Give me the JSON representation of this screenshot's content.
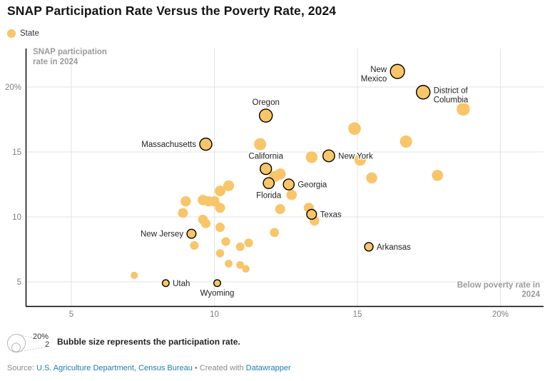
{
  "header": {
    "title": "SNAP Participation Rate Versus the Poverty Rate, 2024"
  },
  "legend": {
    "label": "State"
  },
  "chart_data": {
    "type": "scatter",
    "title": "SNAP Participation Rate Versus the Poverty Rate, 2024",
    "series_name": "State",
    "ylabel": "SNAP participation rate in 2024",
    "ylabel_lines": [
      "SNAP participation",
      "rate in 2024"
    ],
    "xlabel": "Below poverty rate in 2024",
    "xlabel_lines": [
      "Below poverty rate in",
      "2024"
    ],
    "xlim": [
      3.4,
      21.5
    ],
    "ylim": [
      3.1,
      23.0
    ],
    "grid": true,
    "x_ticks": [
      {
        "v": 5,
        "label": "5"
      },
      {
        "v": 10,
        "label": "10"
      },
      {
        "v": 15,
        "label": "15"
      },
      {
        "v": 20,
        "label": "20%"
      }
    ],
    "y_ticks": [
      {
        "v": 5,
        "label": "5"
      },
      {
        "v": 10,
        "label": "10"
      },
      {
        "v": 15,
        "label": "15"
      },
      {
        "v": 20,
        "label": "20%"
      }
    ],
    "bubble_color": "#F8C568",
    "bubble_outline_color": "#000000",
    "size_encoding": "bubble radius ~ SNAP participation rate",
    "labeled_points": [
      {
        "label": "New Mexico",
        "label_lines": [
          "New",
          "Mexico"
        ],
        "x": 16.4,
        "y": 21.2,
        "pos": "left"
      },
      {
        "label": "District of Columbia",
        "label_lines": [
          "District of",
          "Columbia"
        ],
        "x": 17.3,
        "y": 19.6,
        "pos": "right"
      },
      {
        "label": "Oregon",
        "x": 11.8,
        "y": 17.8,
        "pos": "above"
      },
      {
        "label": "Massachusetts",
        "x": 9.7,
        "y": 15.6,
        "pos": "left"
      },
      {
        "label": "California",
        "x": 11.8,
        "y": 13.7,
        "pos": "above"
      },
      {
        "label": "New York",
        "x": 14.0,
        "y": 14.7,
        "pos": "right"
      },
      {
        "label": "Florida",
        "x": 11.9,
        "y": 12.6,
        "pos": "below"
      },
      {
        "label": "Georgia",
        "x": 12.6,
        "y": 12.5,
        "pos": "right"
      },
      {
        "label": "Texas",
        "x": 13.4,
        "y": 10.2,
        "pos": "right"
      },
      {
        "label": "Arkansas",
        "x": 15.4,
        "y": 7.7,
        "pos": "right"
      },
      {
        "label": "New Jersey",
        "x": 9.2,
        "y": 8.7,
        "pos": "left"
      },
      {
        "label": "Utah",
        "x": 8.3,
        "y": 4.9,
        "pos": "right"
      },
      {
        "label": "Wyoming",
        "x": 10.1,
        "y": 4.9,
        "pos": "below"
      }
    ],
    "unlabeled_points": [
      {
        "x": 18.7,
        "y": 18.3
      },
      {
        "x": 14.9,
        "y": 16.8
      },
      {
        "x": 16.7,
        "y": 15.8
      },
      {
        "x": 11.6,
        "y": 15.6
      },
      {
        "x": 13.4,
        "y": 14.6
      },
      {
        "x": 15.1,
        "y": 14.4
      },
      {
        "x": 15.5,
        "y": 13.0
      },
      {
        "x": 17.8,
        "y": 13.2
      },
      {
        "x": 12.1,
        "y": 13.1
      },
      {
        "x": 12.3,
        "y": 13.3
      },
      {
        "x": 12.7,
        "y": 11.7
      },
      {
        "x": 10.5,
        "y": 12.4
      },
      {
        "x": 10.2,
        "y": 12.0
      },
      {
        "x": 9.6,
        "y": 11.3
      },
      {
        "x": 9.8,
        "y": 11.2
      },
      {
        "x": 10.0,
        "y": 11.2
      },
      {
        "x": 9.0,
        "y": 11.2
      },
      {
        "x": 8.9,
        "y": 10.3
      },
      {
        "x": 9.6,
        "y": 9.8
      },
      {
        "x": 9.7,
        "y": 9.5
      },
      {
        "x": 10.2,
        "y": 9.2
      },
      {
        "x": 10.2,
        "y": 10.7
      },
      {
        "x": 9.3,
        "y": 7.8
      },
      {
        "x": 10.4,
        "y": 8.1
      },
      {
        "x": 10.9,
        "y": 7.7
      },
      {
        "x": 11.2,
        "y": 8.0
      },
      {
        "x": 10.2,
        "y": 7.2
      },
      {
        "x": 10.5,
        "y": 6.4
      },
      {
        "x": 10.9,
        "y": 6.3
      },
      {
        "x": 11.1,
        "y": 6.0
      },
      {
        "x": 12.1,
        "y": 8.8
      },
      {
        "x": 12.3,
        "y": 10.6
      },
      {
        "x": 13.3,
        "y": 10.7
      },
      {
        "x": 13.5,
        "y": 9.7
      },
      {
        "x": 7.2,
        "y": 5.5
      }
    ]
  },
  "size_legend": {
    "max_label": "20%",
    "min_label": "2",
    "note": "Bubble size represents the participation rate."
  },
  "footer": {
    "source_prefix": "Source: ",
    "source_link": "U.S. Agriculture Department, Census Bureau",
    "separator": " • ",
    "created_with": "Created with ",
    "tool_link": "Datawrapper",
    "link_color": "#1D7DB2"
  }
}
